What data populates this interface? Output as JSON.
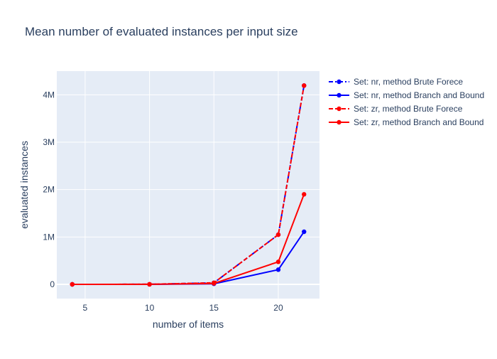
{
  "chart_data": {
    "type": "line",
    "title": "Mean number of evaluated instances per input size",
    "xlabel": "number of items",
    "ylabel": "evaluated instances",
    "x": [
      4,
      10,
      15,
      20,
      22
    ],
    "xlim": [
      2.8,
      23.2
    ],
    "ylim": [
      -300000,
      4500000
    ],
    "xticks": [
      5,
      10,
      15,
      20
    ],
    "xtick_labels": [
      "5",
      "10",
      "15",
      "20"
    ],
    "yticks": [
      0,
      1000000,
      2000000,
      3000000,
      4000000
    ],
    "ytick_labels": [
      "0",
      "1M",
      "2M",
      "3M",
      "4M"
    ],
    "grid": true,
    "legend_position": "top-right outside plot",
    "plot_background": "#e5ecf6",
    "series": [
      {
        "name": "Set: nr, method Brute Forece",
        "color": "#0000ff",
        "dash": "dashdot",
        "marker": "circle",
        "values": [
          16,
          1024,
          32768,
          1048576,
          4194304
        ]
      },
      {
        "name": "Set: nr, method Branch and Bound",
        "color": "#0000ff",
        "dash": "solid",
        "marker": "circle",
        "values": [
          15,
          600,
          12000,
          310000,
          1110000
        ]
      },
      {
        "name": "Set: zr, method Brute Forece",
        "color": "#ff0000",
        "dash": "dash",
        "marker": "circle",
        "values": [
          16,
          1024,
          32768,
          1048576,
          4194304
        ]
      },
      {
        "name": "Set: zr, method Branch and Bound",
        "color": "#ff0000",
        "dash": "solid",
        "marker": "circle",
        "values": [
          15,
          900,
          20000,
          475000,
          1900000
        ]
      }
    ]
  }
}
